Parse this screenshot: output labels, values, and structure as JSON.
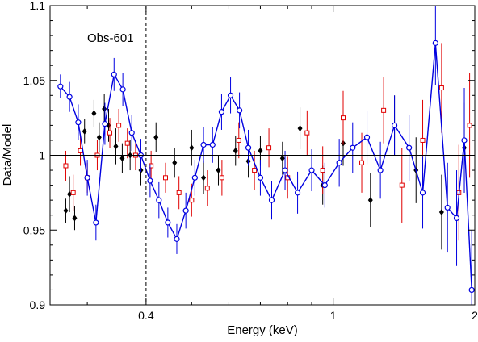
{
  "chart_data": {
    "type": "scatter",
    "annotation": "Obs-601",
    "xlabel": "Energy (keV)",
    "ylabel": "Data/Model",
    "x_scale": "log",
    "xlim": [
      0.25,
      2.0
    ],
    "ylim": [
      0.9,
      1.1
    ],
    "x_ticks": [
      {
        "value": 0.4,
        "label": "0.4"
      },
      {
        "value": 1,
        "label": "1"
      },
      {
        "value": 2,
        "label": "2"
      }
    ],
    "y_ticks": [
      {
        "value": 0.9,
        "label": "0.9"
      },
      {
        "value": 0.95,
        "label": "0.95"
      },
      {
        "value": 1.0,
        "label": "1"
      },
      {
        "value": 1.05,
        "label": "1.05"
      },
      {
        "value": 1.1,
        "label": "1.1"
      }
    ],
    "reference_line_y": 1.0,
    "vertical_dashed_line_x": 0.4,
    "grid": false,
    "series": [
      {
        "color": "#000000",
        "marker": "diamond-filled",
        "points": [
          {
            "x": 0.27,
            "y": 0.963,
            "e": 0.008
          },
          {
            "x": 0.275,
            "y": 0.974,
            "e": 0.012
          },
          {
            "x": 0.282,
            "y": 0.958,
            "e": 0.008
          },
          {
            "x": 0.296,
            "y": 1.016,
            "e": 0.008
          },
          {
            "x": 0.31,
            "y": 1.028,
            "e": 0.009
          },
          {
            "x": 0.318,
            "y": 1.012,
            "e": 0.01
          },
          {
            "x": 0.326,
            "y": 1.031,
            "e": 0.01
          },
          {
            "x": 0.333,
            "y": 1.02,
            "e": 0.011
          },
          {
            "x": 0.345,
            "y": 1.006,
            "e": 0.012
          },
          {
            "x": 0.356,
            "y": 0.998,
            "e": 0.01
          },
          {
            "x": 0.37,
            "y": 1.0,
            "e": 0.01
          },
          {
            "x": 0.39,
            "y": 0.99,
            "e": 0.01
          },
          {
            "x": 0.42,
            "y": 1.012,
            "e": 0.01
          },
          {
            "x": 0.46,
            "y": 0.995,
            "e": 0.01
          },
          {
            "x": 0.5,
            "y": 1.005,
            "e": 0.012
          },
          {
            "x": 0.53,
            "y": 0.985,
            "e": 0.011
          },
          {
            "x": 0.57,
            "y": 0.99,
            "e": 0.01
          },
          {
            "x": 0.62,
            "y": 1.003,
            "e": 0.01
          },
          {
            "x": 0.66,
            "y": 0.996,
            "e": 0.011
          },
          {
            "x": 0.7,
            "y": 1.003,
            "e": 0.01
          },
          {
            "x": 0.78,
            "y": 0.998,
            "e": 0.011
          },
          {
            "x": 0.85,
            "y": 1.018,
            "e": 0.014
          },
          {
            "x": 0.95,
            "y": 0.98,
            "e": 0.013
          },
          {
            "x": 1.05,
            "y": 1.008,
            "e": 0.015
          },
          {
            "x": 1.2,
            "y": 0.97,
            "e": 0.018
          },
          {
            "x": 1.35,
            "y": 1.02,
            "e": 0.02
          },
          {
            "x": 1.5,
            "y": 0.99,
            "e": 0.022
          },
          {
            "x": 1.7,
            "y": 0.962,
            "e": 0.025
          },
          {
            "x": 1.9,
            "y": 1.005,
            "e": 0.03
          }
        ]
      },
      {
        "color": "#e00000",
        "marker": "square-open",
        "points": [
          {
            "x": 0.27,
            "y": 0.993,
            "e": 0.01
          },
          {
            "x": 0.28,
            "y": 0.975,
            "e": 0.012
          },
          {
            "x": 0.29,
            "y": 1.003,
            "e": 0.01
          },
          {
            "x": 0.3,
            "y": 0.985,
            "e": 0.01
          },
          {
            "x": 0.315,
            "y": 1.0,
            "e": 0.01
          },
          {
            "x": 0.335,
            "y": 1.015,
            "e": 0.01
          },
          {
            "x": 0.35,
            "y": 1.02,
            "e": 0.011
          },
          {
            "x": 0.365,
            "y": 1.008,
            "e": 0.01
          },
          {
            "x": 0.38,
            "y": 1.0,
            "e": 0.01
          },
          {
            "x": 0.41,
            "y": 0.993,
            "e": 0.01
          },
          {
            "x": 0.44,
            "y": 0.985,
            "e": 0.01
          },
          {
            "x": 0.47,
            "y": 0.975,
            "e": 0.011
          },
          {
            "x": 0.5,
            "y": 0.97,
            "e": 0.011
          },
          {
            "x": 0.54,
            "y": 0.978,
            "e": 0.012
          },
          {
            "x": 0.58,
            "y": 0.985,
            "e": 0.012
          },
          {
            "x": 0.63,
            "y": 1.01,
            "e": 0.012
          },
          {
            "x": 0.68,
            "y": 0.99,
            "e": 0.013
          },
          {
            "x": 0.73,
            "y": 1.005,
            "e": 0.013
          },
          {
            "x": 0.8,
            "y": 0.985,
            "e": 0.014
          },
          {
            "x": 0.88,
            "y": 1.015,
            "e": 0.015
          },
          {
            "x": 0.95,
            "y": 0.99,
            "e": 0.016
          },
          {
            "x": 1.05,
            "y": 1.025,
            "e": 0.018
          },
          {
            "x": 1.15,
            "y": 0.995,
            "e": 0.02
          },
          {
            "x": 1.28,
            "y": 1.03,
            "e": 0.022
          },
          {
            "x": 1.4,
            "y": 0.98,
            "e": 0.025
          },
          {
            "x": 1.55,
            "y": 1.01,
            "e": 0.027
          },
          {
            "x": 1.7,
            "y": 1.045,
            "e": 0.03
          },
          {
            "x": 1.85,
            "y": 0.975,
            "e": 0.032
          },
          {
            "x": 1.95,
            "y": 1.02,
            "e": 0.035
          }
        ]
      },
      {
        "color": "#0000e0",
        "marker": "circle-open",
        "connected": true,
        "points": [
          {
            "x": 0.263,
            "y": 1.046,
            "e": 0.008
          },
          {
            "x": 0.275,
            "y": 1.039,
            "e": 0.01
          },
          {
            "x": 0.287,
            "y": 1.022,
            "e": 0.012
          },
          {
            "x": 0.3,
            "y": 0.985,
            "e": 0.012
          },
          {
            "x": 0.313,
            "y": 0.955,
            "e": 0.012
          },
          {
            "x": 0.327,
            "y": 1.021,
            "e": 0.014
          },
          {
            "x": 0.342,
            "y": 1.054,
            "e": 0.011
          },
          {
            "x": 0.357,
            "y": 1.044,
            "e": 0.011
          },
          {
            "x": 0.373,
            "y": 1.015,
            "e": 0.012
          },
          {
            "x": 0.39,
            "y": 1.0,
            "e": 0.011
          },
          {
            "x": 0.408,
            "y": 0.983,
            "e": 0.011
          },
          {
            "x": 0.426,
            "y": 0.97,
            "e": 0.012
          },
          {
            "x": 0.445,
            "y": 0.955,
            "e": 0.01
          },
          {
            "x": 0.465,
            "y": 0.944,
            "e": 0.01
          },
          {
            "x": 0.486,
            "y": 0.963,
            "e": 0.012
          },
          {
            "x": 0.508,
            "y": 0.985,
            "e": 0.012
          },
          {
            "x": 0.53,
            "y": 1.007,
            "e": 0.012
          },
          {
            "x": 0.554,
            "y": 1.007,
            "e": 0.012
          },
          {
            "x": 0.579,
            "y": 1.029,
            "e": 0.012
          },
          {
            "x": 0.605,
            "y": 1.04,
            "e": 0.012
          },
          {
            "x": 0.632,
            "y": 1.03,
            "e": 0.012
          },
          {
            "x": 0.66,
            "y": 1.005,
            "e": 0.012
          },
          {
            "x": 0.7,
            "y": 0.985,
            "e": 0.012
          },
          {
            "x": 0.74,
            "y": 0.97,
            "e": 0.013
          },
          {
            "x": 0.79,
            "y": 0.99,
            "e": 0.013
          },
          {
            "x": 0.84,
            "y": 0.975,
            "e": 0.014
          },
          {
            "x": 0.9,
            "y": 0.99,
            "e": 0.014
          },
          {
            "x": 0.96,
            "y": 0.98,
            "e": 0.015
          },
          {
            "x": 1.03,
            "y": 0.995,
            "e": 0.016
          },
          {
            "x": 1.1,
            "y": 1.005,
            "e": 0.017
          },
          {
            "x": 1.18,
            "y": 1.012,
            "e": 0.018
          },
          {
            "x": 1.26,
            "y": 0.99,
            "e": 0.019
          },
          {
            "x": 1.35,
            "y": 1.02,
            "e": 0.02
          },
          {
            "x": 1.45,
            "y": 1.005,
            "e": 0.022
          },
          {
            "x": 1.55,
            "y": 0.975,
            "e": 0.024
          },
          {
            "x": 1.65,
            "y": 1.075,
            "e": 0.028
          },
          {
            "x": 1.75,
            "y": 0.965,
            "e": 0.03
          },
          {
            "x": 1.83,
            "y": 0.958,
            "e": 0.032
          },
          {
            "x": 1.9,
            "y": 1.01,
            "e": 0.035
          },
          {
            "x": 1.97,
            "y": 0.91,
            "e": 0.04
          }
        ]
      }
    ]
  }
}
